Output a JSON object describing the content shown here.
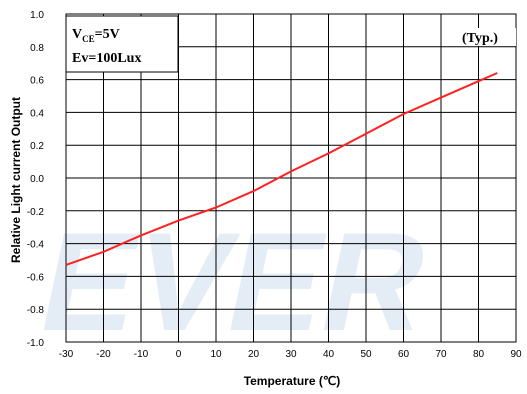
{
  "chart_data": {
    "type": "line",
    "xlabel": "Temperature (℃)",
    "ylabel": "Relative Light current Output",
    "xlim": [
      -30,
      90
    ],
    "ylim": [
      -1.0,
      1.0
    ],
    "xticks": [
      "-30",
      "-20",
      "-10",
      "0",
      "10",
      "20",
      "30",
      "40",
      "50",
      "60",
      "70",
      "80",
      "90"
    ],
    "yticks": [
      "1.0",
      "0.8",
      "0.6",
      "0.4",
      "0.2",
      "0.0",
      "-0.2",
      "-0.4",
      "-0.6",
      "-0.8",
      "-1.0"
    ],
    "grid": true,
    "watermark": "EVER",
    "annotations": {
      "condition_line1_main": "V",
      "condition_line1_sub": "CE",
      "condition_line1_rest": "=5V",
      "condition_line2": "Ev=100Lux",
      "typ_label": "(Typ.)"
    },
    "series": [
      {
        "color": "#ff2020",
        "x": [
          -30,
          -20,
          -10,
          0,
          10,
          20,
          30,
          40,
          50,
          60,
          70,
          80,
          85
        ],
        "y": [
          -0.53,
          -0.45,
          -0.35,
          -0.26,
          -0.18,
          -0.08,
          0.04,
          0.15,
          0.27,
          0.39,
          0.49,
          0.59,
          0.64
        ]
      }
    ]
  }
}
